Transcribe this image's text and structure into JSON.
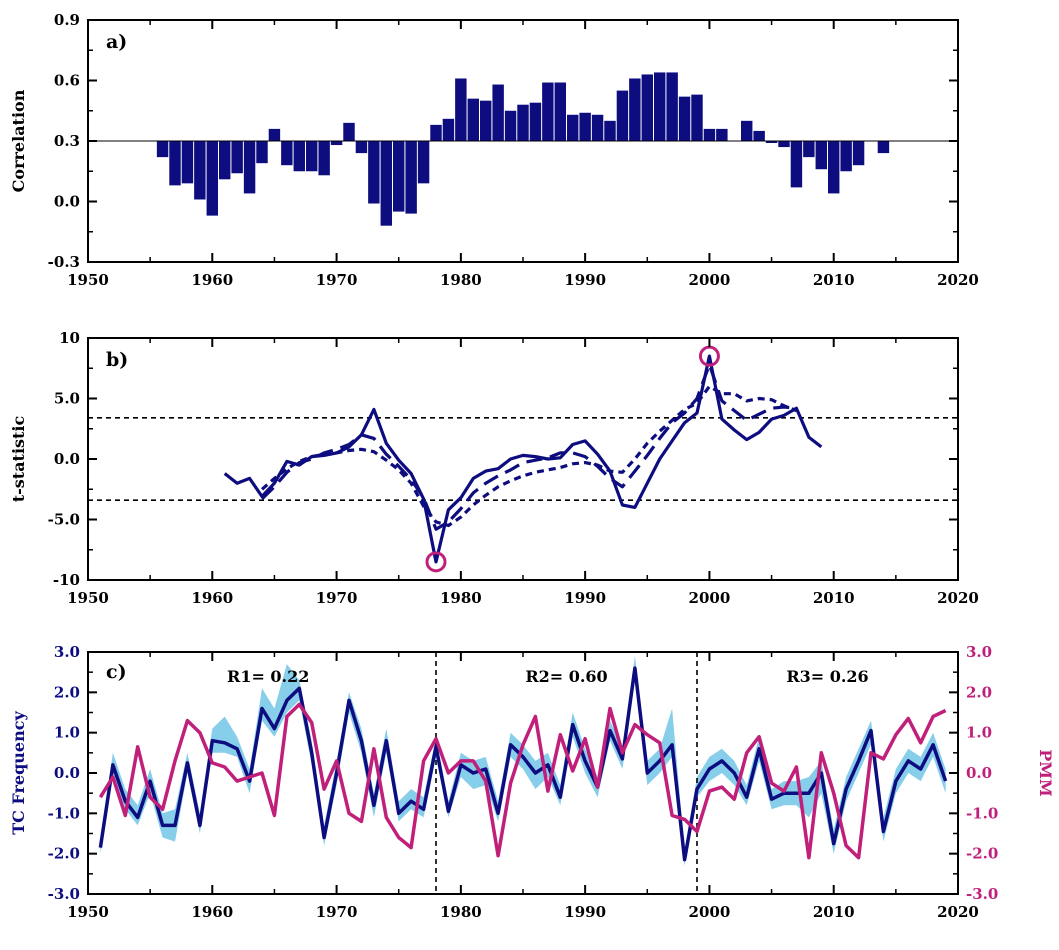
{
  "chart_data": [
    {
      "panel_label": "a)",
      "type": "bar",
      "ylabel": "Correlation",
      "xlim": [
        1950,
        2020
      ],
      "ylim": [
        -0.3,
        0.9
      ],
      "baseline": 0.3,
      "xticks": [
        "1950",
        "1960",
        "1970",
        "1980",
        "1990",
        "2000",
        "2010",
        "2020"
      ],
      "yticks": [
        "-0.3",
        "0.0",
        "0.3",
        "0.6",
        "0.9"
      ],
      "color": "#0d0d80",
      "x": [
        1956,
        1957,
        1958,
        1959,
        1960,
        1961,
        1962,
        1963,
        1964,
        1965,
        1966,
        1967,
        1968,
        1969,
        1970,
        1971,
        1972,
        1973,
        1974,
        1975,
        1976,
        1977,
        1978,
        1979,
        1980,
        1981,
        1982,
        1983,
        1984,
        1985,
        1986,
        1987,
        1988,
        1989,
        1990,
        1991,
        1992,
        1993,
        1994,
        1995,
        1996,
        1997,
        1998,
        1999,
        2000,
        2001,
        2002,
        2003,
        2004,
        2005,
        2006,
        2007,
        2008,
        2009,
        2010,
        2011,
        2012,
        2013,
        2014
      ],
      "values": [
        0.22,
        0.08,
        0.09,
        0.01,
        -0.07,
        0.11,
        0.14,
        0.04,
        0.19,
        0.36,
        0.18,
        0.15,
        0.15,
        0.13,
        0.28,
        0.39,
        0.24,
        -0.01,
        -0.12,
        -0.05,
        -0.06,
        0.09,
        0.38,
        0.41,
        0.61,
        0.51,
        0.5,
        0.58,
        0.45,
        0.48,
        0.49,
        0.59,
        0.59,
        0.43,
        0.44,
        0.43,
        0.4,
        0.55,
        0.61,
        0.63,
        0.64,
        0.64,
        0.52,
        0.53,
        0.36,
        0.36,
        0.3,
        0.4,
        0.35,
        0.29,
        0.27,
        0.07,
        0.22,
        0.16,
        0.04,
        0.15,
        0.18,
        0.3,
        0.24
      ]
    },
    {
      "panel_label": "b)",
      "type": "line",
      "ylabel": "t-statistic",
      "xlim": [
        1950,
        2020
      ],
      "ylim": [
        -10,
        10
      ],
      "xticks": [
        "1950",
        "1960",
        "1970",
        "1980",
        "1990",
        "2000",
        "2010",
        "2020"
      ],
      "yticks": [
        "-10",
        "-5.0",
        "0.0",
        "5.0",
        "10"
      ],
      "threshold": [
        3.4,
        -3.4
      ],
      "color": "#0d0d80",
      "marker_color": "#c0207a",
      "markers": [
        {
          "x": 1978,
          "y": -8.5
        },
        {
          "x": 2000,
          "y": 8.5
        }
      ],
      "series": [
        {
          "style": "solid",
          "x": [
            1961,
            1962,
            1963,
            1964,
            1965,
            1966,
            1967,
            1968,
            1969,
            1970,
            1971,
            1972,
            1973,
            1974,
            1975,
            1976,
            1977,
            1978,
            1979,
            1980,
            1981,
            1982,
            1983,
            1984,
            1985,
            1986,
            1987,
            1988,
            1989,
            1990,
            1991,
            1992,
            1993,
            1994,
            1995,
            1996,
            1997,
            1998,
            1999,
            2000,
            2001,
            2002,
            2003,
            2004,
            2005,
            2006,
            2007,
            2008,
            2009
          ],
          "values": [
            -1.2,
            -2.0,
            -1.6,
            -3.1,
            -2.0,
            -0.2,
            -0.5,
            0.2,
            0.3,
            0.5,
            1.0,
            2.0,
            4.1,
            1.3,
            -0.1,
            -1.2,
            -3.3,
            -8.5,
            -4.2,
            -3.2,
            -1.6,
            -1.0,
            -0.8,
            0.0,
            0.3,
            0.2,
            0.0,
            0.1,
            1.2,
            1.5,
            0.4,
            -1.0,
            -3.8,
            -4.0,
            -2.0,
            0.0,
            1.5,
            3.0,
            3.8,
            8.5,
            3.3,
            2.4,
            1.6,
            2.2,
            3.3,
            3.6,
            4.2,
            1.8,
            1.0
          ]
        },
        {
          "style": "long-dash",
          "x": [
            1964,
            1965,
            1966,
            1967,
            1968,
            1969,
            1970,
            1971,
            1972,
            1973,
            1974,
            1975,
            1976,
            1977,
            1978,
            1979,
            1980,
            1981,
            1982,
            1983,
            1984,
            1985,
            1986,
            1987,
            1988,
            1989,
            1990,
            1991,
            1992,
            1993,
            1994,
            1995,
            1996,
            1997,
            1998,
            1999,
            2000,
            2001,
            2002,
            2003,
            2004,
            2005,
            2006,
            2007
          ],
          "values": [
            -3.3,
            -2.3,
            -1.1,
            -0.3,
            0.0,
            0.5,
            0.8,
            1.2,
            2.0,
            1.7,
            0.4,
            -0.6,
            -1.7,
            -3.2,
            -5.8,
            -5.2,
            -4.1,
            -2.8,
            -2.0,
            -1.4,
            -0.9,
            -0.3,
            -0.1,
            0.1,
            0.5,
            0.5,
            0.2,
            -0.6,
            -1.6,
            -2.3,
            -1.0,
            0.3,
            1.7,
            3.0,
            3.8,
            5.0,
            7.8,
            4.8,
            4.0,
            3.2,
            3.7,
            4.2,
            4.3,
            4.2
          ]
        },
        {
          "style": "short-dash",
          "x": [
            1964,
            1965,
            1966,
            1967,
            1968,
            1969,
            1970,
            1971,
            1972,
            1973,
            1974,
            1975,
            1976,
            1977,
            1978,
            1979,
            1980,
            1981,
            1982,
            1983,
            1984,
            1985,
            1986,
            1987,
            1988,
            1989,
            1990,
            1991,
            1992,
            1993,
            1994,
            1995,
            1996,
            1997,
            1998,
            1999,
            2000,
            2001,
            2002,
            2003,
            2004,
            2005,
            2006,
            2007
          ],
          "values": [
            -2.5,
            -1.6,
            -0.8,
            -0.2,
            0.2,
            0.4,
            0.5,
            0.7,
            0.8,
            0.6,
            -0.1,
            -0.9,
            -2.0,
            -3.9,
            -5.2,
            -5.5,
            -4.8,
            -3.8,
            -3.0,
            -2.3,
            -1.8,
            -1.4,
            -1.1,
            -0.9,
            -0.7,
            -0.4,
            -0.3,
            -0.5,
            -1.0,
            -1.1,
            0.0,
            1.3,
            2.3,
            3.2,
            4.1,
            4.6,
            6.0,
            5.4,
            5.4,
            4.8,
            5.0,
            4.9,
            4.4,
            4.0
          ]
        }
      ]
    },
    {
      "panel_label": "c)",
      "type": "line",
      "ylabel": "TC Frequency",
      "ylabel_right": "PMM",
      "xlim": [
        1950,
        2020
      ],
      "ylim": [
        -3,
        3
      ],
      "xticks": [
        "1950",
        "1960",
        "1970",
        "1980",
        "1990",
        "2000",
        "2010",
        "2020"
      ],
      "yticks_left": [
        "-3.0",
        "-2.0",
        "-1.0",
        "0.0",
        "1.0",
        "2.0",
        "3.0"
      ],
      "yticks_right": [
        "-3.0",
        "-2.0",
        "-1.0",
        "0.0",
        "1.0",
        "2.0",
        "3.0"
      ],
      "left_color": "#0d0d80",
      "right_color": "#c0207a",
      "band_color": "#87ceeb",
      "breakpoints": [
        1978,
        1999
      ],
      "annotations": [
        {
          "text": "R1= 0.22",
          "x": 1964.5
        },
        {
          "text": "R2= 0.60",
          "x": 1988.5
        },
        {
          "text": "R3= 0.26",
          "x": 2009.5
        }
      ],
      "x": [
        1951,
        1952,
        1953,
        1954,
        1955,
        1956,
        1957,
        1958,
        1959,
        1960,
        1961,
        1962,
        1963,
        1964,
        1965,
        1966,
        1967,
        1968,
        1969,
        1970,
        1971,
        1972,
        1973,
        1974,
        1975,
        1976,
        1977,
        1978,
        1979,
        1980,
        1981,
        1982,
        1983,
        1984,
        1985,
        1986,
        1987,
        1988,
        1989,
        1990,
        1991,
        1992,
        1993,
        1994,
        1995,
        1996,
        1997,
        1998,
        1999,
        2000,
        2001,
        2002,
        2003,
        2004,
        2005,
        2006,
        2007,
        2008,
        2009,
        2010,
        2011,
        2012,
        2013,
        2014,
        2015,
        2016,
        2017,
        2018,
        2019
      ],
      "series": [
        {
          "name": "TC Frequency",
          "axis": "left",
          "values": [
            -1.85,
            0.2,
            -0.7,
            -1.1,
            -0.2,
            -1.3,
            -1.3,
            0.25,
            -1.3,
            0.8,
            0.75,
            0.6,
            -0.2,
            1.6,
            1.1,
            1.8,
            2.1,
            0.5,
            -1.6,
            0.0,
            1.8,
            0.8,
            -0.8,
            0.8,
            -1.0,
            -0.7,
            -0.9,
            0.65,
            -0.95,
            0.2,
            0.0,
            0.1,
            -1.0,
            0.7,
            0.4,
            0.0,
            0.2,
            -0.6,
            1.2,
            0.3,
            -0.35,
            1.05,
            0.35,
            2.6,
            0.0,
            0.3,
            0.7,
            -2.15,
            -0.4,
            0.1,
            0.3,
            0.0,
            -0.6,
            0.6,
            -0.65,
            -0.5,
            -0.5,
            -0.5,
            0.0,
            -1.75,
            -0.4,
            0.3,
            1.05,
            -1.45,
            -0.2,
            0.3,
            0.1,
            0.7,
            -0.2
          ]
        },
        {
          "name": "PMM",
          "axis": "right",
          "values": [
            -0.6,
            -0.1,
            -1.05,
            0.65,
            -0.6,
            -0.9,
            0.3,
            1.3,
            1.0,
            0.25,
            0.15,
            -0.2,
            -0.1,
            0.0,
            -1.05,
            1.4,
            1.7,
            1.25,
            -0.4,
            0.3,
            -1.0,
            -1.2,
            0.6,
            -1.1,
            -1.6,
            -1.85,
            0.3,
            0.85,
            0.0,
            0.3,
            0.3,
            -0.2,
            -2.05,
            -0.25,
            0.7,
            1.4,
            -0.45,
            0.95,
            0.05,
            0.85,
            -0.35,
            1.6,
            0.5,
            1.2,
            0.95,
            0.75,
            -1.05,
            -1.15,
            -1.45,
            -0.45,
            -0.35,
            -0.65,
            0.5,
            0.9,
            -0.25,
            -0.45,
            0.15,
            -2.1,
            0.5,
            -0.5,
            -1.8,
            -2.1,
            0.5,
            0.35,
            0.95,
            1.35,
            0.75,
            1.4,
            1.55
          ]
        }
      ],
      "band_lower": [
        -2.0,
        0.0,
        -0.9,
        -1.3,
        -0.5,
        -1.6,
        -1.7,
        0.0,
        -1.5,
        0.5,
        0.5,
        0.4,
        -0.5,
        1.3,
        0.9,
        1.5,
        1.8,
        0.2,
        -1.8,
        -0.3,
        1.5,
        0.5,
        -1.1,
        0.5,
        -1.2,
        -0.9,
        -1.1,
        0.4,
        -1.1,
        -0.1,
        -0.4,
        -0.3,
        -1.2,
        0.4,
        0.1,
        -0.4,
        -0.1,
        -0.8,
        0.9,
        0.0,
        -0.6,
        0.8,
        0.1,
        2.3,
        -0.3,
        0.0,
        0.4,
        -2.3,
        -0.6,
        -0.2,
        0.0,
        -0.3,
        -0.8,
        0.3,
        -0.9,
        -0.8,
        -0.8,
        -1.1,
        -0.5,
        -2.0,
        -0.7,
        0.0,
        0.7,
        -1.7,
        -0.5,
        0.0,
        -0.2,
        0.4,
        -0.5
      ],
      "band_upper": [
        -1.6,
        0.5,
        -0.4,
        -0.8,
        0.1,
        -1.0,
        -0.9,
        0.5,
        -1.0,
        1.1,
        1.4,
        0.9,
        0.1,
        2.1,
        1.6,
        2.7,
        2.3,
        0.8,
        -1.3,
        0.3,
        2.0,
        1.1,
        -0.5,
        1.1,
        -0.7,
        -0.4,
        -0.6,
        0.9,
        -0.7,
        0.5,
        0.3,
        0.4,
        -0.7,
        1.0,
        0.7,
        0.3,
        0.5,
        -0.3,
        1.5,
        0.6,
        -0.1,
        1.3,
        0.6,
        2.9,
        0.3,
        0.6,
        1.6,
        -1.9,
        -0.1,
        0.4,
        0.6,
        0.3,
        -0.3,
        0.9,
        -0.4,
        -0.2,
        -0.2,
        -0.1,
        0.3,
        -1.4,
        -0.1,
        0.6,
        1.3,
        -1.1,
        0.1,
        0.6,
        0.4,
        1.0,
        0.1
      ]
    }
  ]
}
